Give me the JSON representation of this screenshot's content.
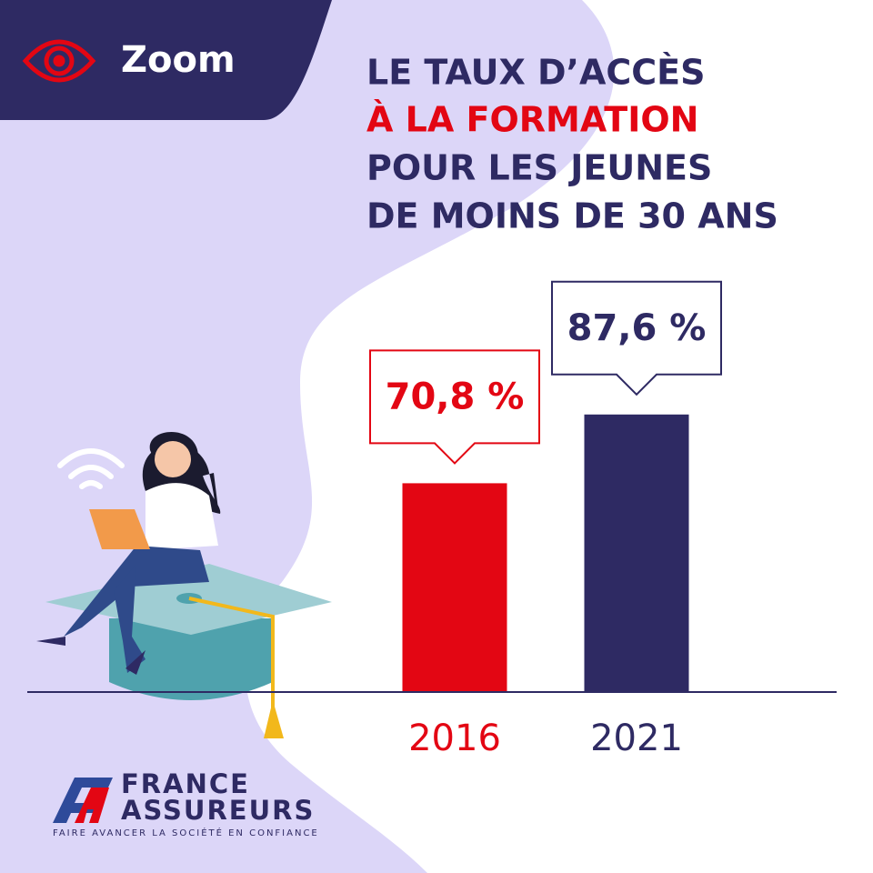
{
  "badge": "Zoom",
  "chart_data": {
    "type": "bar",
    "title_lines": [
      "LE TAUX D’ACCÈS",
      "À LA FORMATION",
      "POUR LES JEUNES",
      "DE MOINS DE 30 ANS"
    ],
    "categories": [
      "2016",
      "2021"
    ],
    "values": [
      70.8,
      87.6
    ],
    "value_labels": [
      "70,8 %",
      "87,6 %"
    ],
    "colors": [
      "#e30613",
      "#2e2a63"
    ],
    "ylim": [
      20,
      100
    ]
  },
  "logo": {
    "line1": "FRANCE",
    "line2": "ASSUREURS",
    "tagline": "FAIRE AVANCER LA SOCIÉTÉ EN CONFIANCE"
  }
}
